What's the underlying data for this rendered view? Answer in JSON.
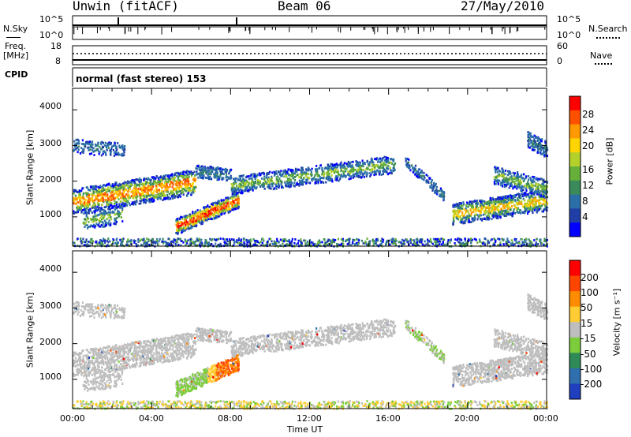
{
  "header": {
    "station": "Unwin (fitACF)",
    "beam": "Beam 06",
    "date": "27/May/2010"
  },
  "noise_panel": {
    "left_label": "N.Sky",
    "left_top_tick": "10^5",
    "left_bottom_tick": "10^0",
    "right_label": "N.Search",
    "right_top_tick": "10^5",
    "right_bottom_tick": "10^0"
  },
  "freq_panel": {
    "left_label_line1": "Freq.",
    "left_label_line2": "[MHz]",
    "left_top_tick": "18",
    "left_bottom_tick": "8",
    "right_label": "Nave",
    "right_top_tick": "60",
    "right_bottom_tick": "0"
  },
  "cpid_panel": {
    "label": "CPID",
    "value": "normal (fast stereo) 153"
  },
  "chart_data": [
    {
      "type": "heatmap",
      "name": "Power",
      "ylabel": "Slant Range [km]",
      "yticks": [
        "1000",
        "2000",
        "3000",
        "4000"
      ],
      "ylim": [
        180,
        4600
      ],
      "xlim": [
        0,
        24
      ],
      "colorbar_label": "Power [dB]",
      "colorbar_ticks": [
        "4",
        "8",
        "12",
        "16",
        "20",
        "24",
        "28"
      ],
      "colorbar_colors": [
        "#0000ff",
        "#1f3fa6",
        "#2b6fa8",
        "#3a8a5a",
        "#66b03a",
        "#b4d02a",
        "#ffd400",
        "#ff9900",
        "#ff5000",
        "#ff0000"
      ]
    },
    {
      "type": "heatmap",
      "name": "Velocity",
      "ylabel": "Slant Range [km]",
      "yticks": [
        "1000",
        "2000",
        "3000",
        "4000"
      ],
      "ylim": [
        180,
        4600
      ],
      "xlim": [
        0,
        24
      ],
      "colorbar_label": "Velocity [m s⁻¹]",
      "colorbar_ticks": [
        "200",
        "100",
        "50",
        "15",
        "-15",
        "-50",
        "-100",
        "-200"
      ],
      "colorbar_colors": [
        "#1f3fbf",
        "#2f6fae",
        "#2e8b57",
        "#7ccc3c",
        "#bebebe",
        "#ffcc33",
        "#ff8c00",
        "#ff4500",
        "#ff0000"
      ]
    }
  ],
  "x_axis": {
    "ticks": [
      "00:00",
      "04:00",
      "08:00",
      "12:00",
      "16:00",
      "20:00",
      "00:00"
    ],
    "label": "Time UT"
  }
}
